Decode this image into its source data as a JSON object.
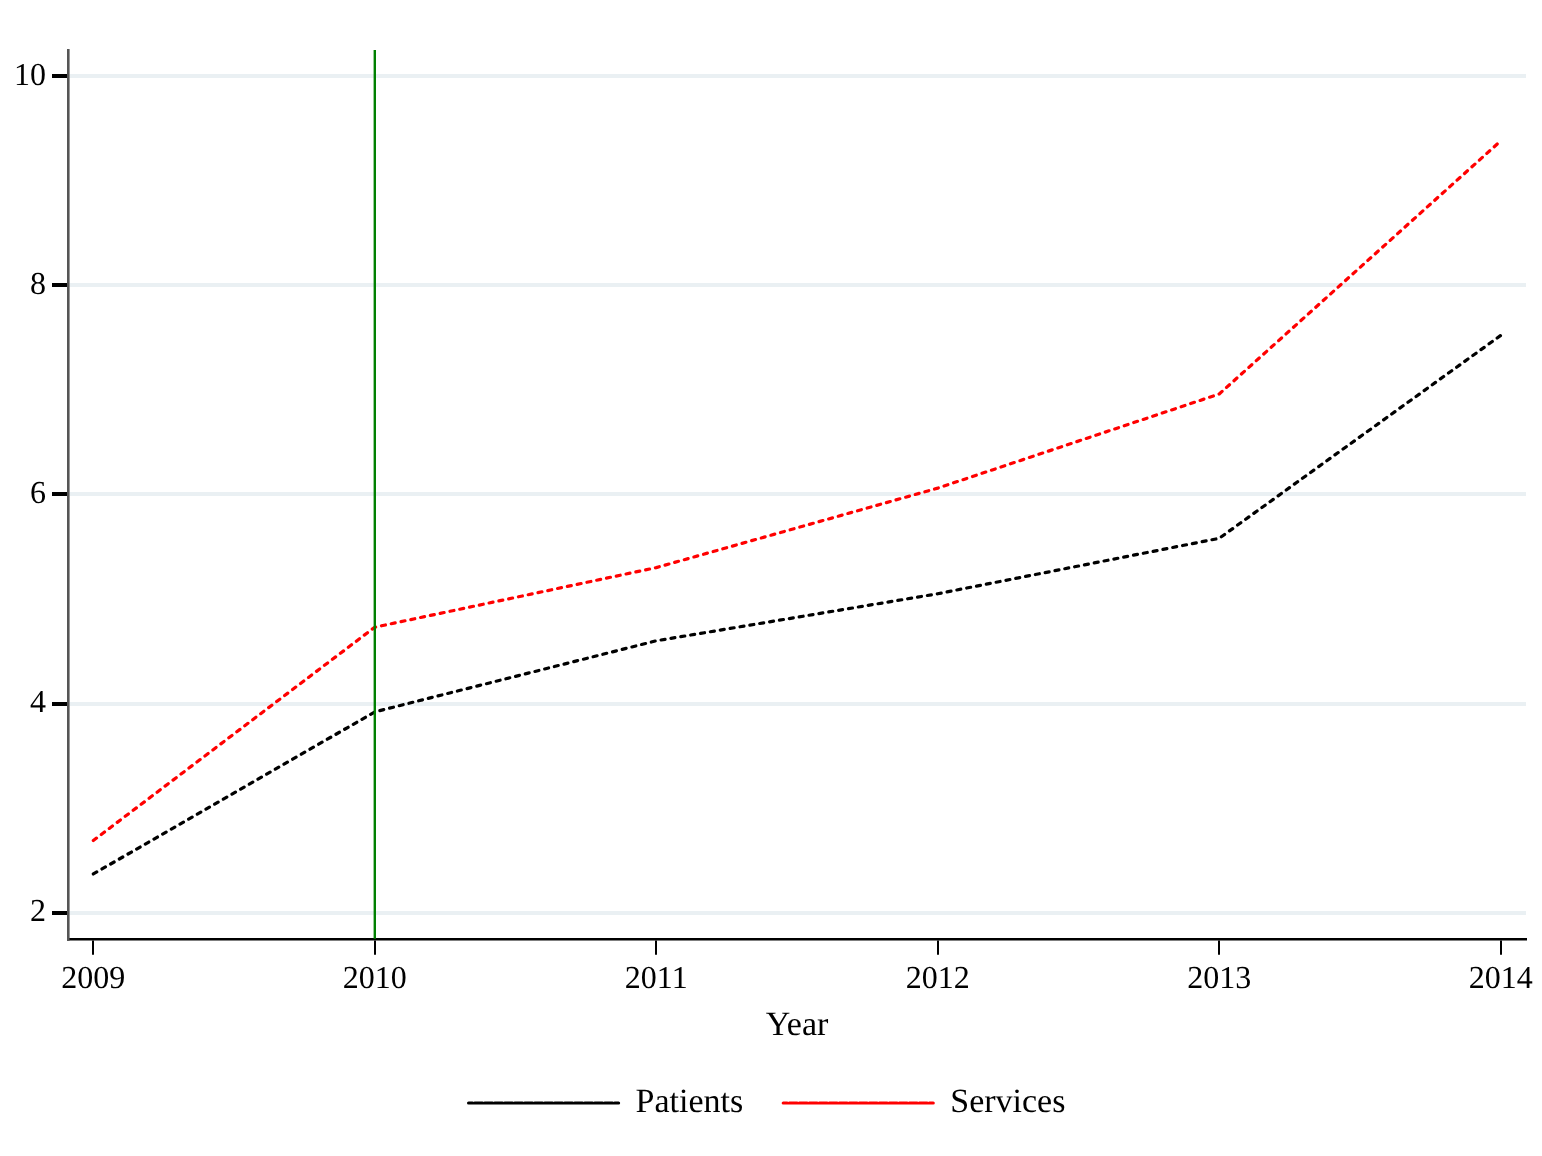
{
  "chart_data": {
    "type": "line",
    "xlabel": "Year",
    "x": [
      2009,
      2010,
      2011,
      2012,
      2013,
      2014
    ],
    "series": [
      {
        "name": "Patients",
        "color": "#000000",
        "values": [
          2.37,
          3.92,
          4.6,
          5.05,
          5.58,
          7.52
        ]
      },
      {
        "name": "Services",
        "color": "#ff0000",
        "values": [
          2.69,
          4.73,
          5.3,
          6.06,
          6.96,
          9.38
        ]
      }
    ],
    "xlim": [
      2008.91,
      2014.09
    ],
    "xticks": [
      2009,
      2010,
      2011,
      2012,
      2013,
      2014
    ],
    "ylim": [
      1.75,
      10.25
    ],
    "yticks": [
      2,
      4,
      6,
      8,
      10
    ],
    "ref_lines": [
      {
        "axis": "x",
        "value": 2010,
        "color": "#008000"
      }
    ],
    "grid": "y",
    "legend": "bottom",
    "line_style": "dotted",
    "marker": "none"
  }
}
